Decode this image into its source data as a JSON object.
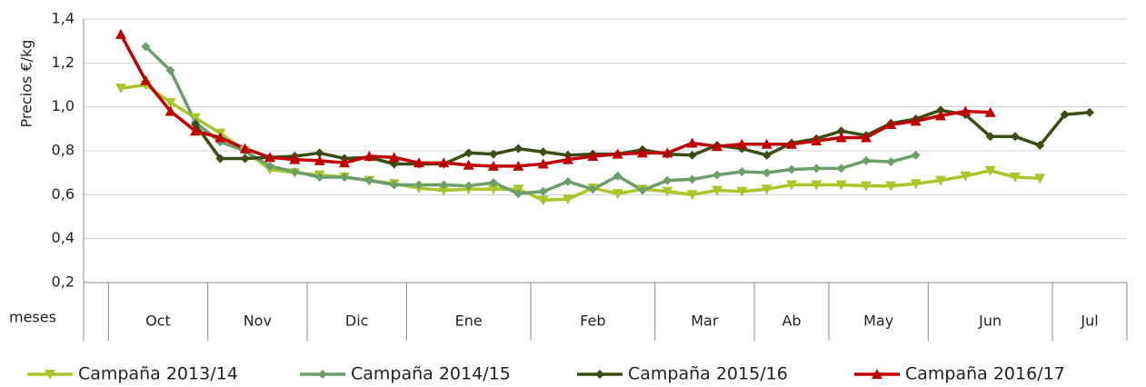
{
  "chart_data": {
    "type": "line",
    "y_label": "Precios €/kg",
    "x_label": "meses",
    "categories": [
      null,
      null,
      null,
      null,
      null,
      null,
      null,
      null,
      null,
      null,
      null,
      null,
      null,
      null,
      null,
      null,
      null,
      null,
      null,
      null,
      null,
      null,
      null,
      null,
      null,
      null,
      null,
      null,
      null,
      null,
      null,
      null,
      null,
      null,
      null,
      null,
      null,
      null,
      null,
      null,
      null,
      null
    ],
    "months": [
      {
        "label": null,
        "weeks": 1
      },
      {
        "label": "Oct",
        "weeks": 4
      },
      {
        "label": "Nov",
        "weeks": 4
      },
      {
        "label": "Dic",
        "weeks": 4
      },
      {
        "label": "Ene",
        "weeks": 5
      },
      {
        "label": "Feb",
        "weeks": 5
      },
      {
        "label": "Mar",
        "weeks": 4
      },
      {
        "label": "Ab",
        "weeks": 3
      },
      {
        "label": "May",
        "weeks": 4
      },
      {
        "label": "Jun",
        "weeks": 5
      },
      {
        "label": "Jul",
        "weeks": 3
      }
    ],
    "ylim": [
      0.2,
      1.4
    ],
    "yticks": [
      {
        "value": 0.2,
        "label": "0,2"
      },
      {
        "value": 0.4,
        "label": "0,4"
      },
      {
        "value": 0.6,
        "label": "0,6"
      },
      {
        "value": 0.8,
        "label": "0,8"
      },
      {
        "value": 1.0,
        "label": "1,0"
      },
      {
        "value": 1.2,
        "label": "1,2"
      },
      {
        "value": 1.4,
        "label": "1,4"
      }
    ],
    "grid": true,
    "legend": "bottom",
    "series": [
      {
        "name": "Campaña 2013/14",
        "color": "#a9c72b",
        "marker": "triangle-down",
        "values": [
          null,
          1.085,
          1.1,
          1.02,
          0.95,
          0.88,
          0.8,
          0.715,
          0.7,
          0.69,
          0.68,
          0.665,
          0.65,
          0.63,
          0.62,
          0.625,
          0.625,
          0.625,
          0.575,
          0.58,
          0.63,
          0.605,
          0.625,
          0.615,
          0.6,
          0.62,
          0.615,
          0.625,
          0.645,
          0.645,
          0.645,
          0.64,
          0.64,
          0.65,
          0.665,
          0.685,
          0.71,
          0.68,
          0.675,
          null,
          null,
          null
        ]
      },
      {
        "name": "Campaña 2014/15",
        "color": "#6c9d6c",
        "marker": "diamond",
        "values": [
          null,
          null,
          1.275,
          1.165,
          0.93,
          0.84,
          0.8,
          0.73,
          0.705,
          0.68,
          0.68,
          0.665,
          0.645,
          0.645,
          0.645,
          0.64,
          0.655,
          0.605,
          0.615,
          0.66,
          0.625,
          0.685,
          0.62,
          0.665,
          0.67,
          0.69,
          0.705,
          0.7,
          0.715,
          0.72,
          0.72,
          0.755,
          0.75,
          0.78,
          null,
          null,
          null,
          null,
          null,
          null,
          null,
          null
        ]
      },
      {
        "name": "Campaña 2015/16",
        "color": "#3b4d15",
        "marker": "diamond",
        "values": [
          null,
          null,
          null,
          null,
          0.92,
          0.765,
          0.765,
          0.77,
          0.775,
          0.79,
          0.765,
          0.77,
          0.74,
          0.74,
          0.74,
          0.79,
          0.785,
          0.81,
          0.795,
          0.78,
          0.785,
          0.785,
          0.805,
          0.785,
          0.78,
          0.825,
          0.81,
          0.78,
          0.835,
          0.855,
          0.89,
          0.87,
          0.925,
          0.945,
          0.985,
          0.965,
          0.865,
          0.865,
          0.825,
          0.965,
          0.975,
          null
        ]
      },
      {
        "name": "Campaña 2016/17",
        "color": "#c00000",
        "marker": "triangle-up",
        "values": [
          null,
          1.33,
          1.12,
          0.98,
          0.89,
          0.86,
          0.81,
          0.77,
          0.76,
          0.755,
          0.745,
          0.775,
          0.77,
          0.745,
          0.745,
          0.735,
          0.73,
          0.73,
          0.74,
          0.76,
          0.775,
          0.785,
          0.79,
          0.79,
          0.835,
          0.82,
          0.83,
          0.83,
          0.83,
          0.845,
          0.86,
          0.86,
          0.92,
          0.935,
          0.96,
          0.98,
          0.975,
          null,
          null,
          null,
          null,
          null
        ]
      }
    ]
  }
}
